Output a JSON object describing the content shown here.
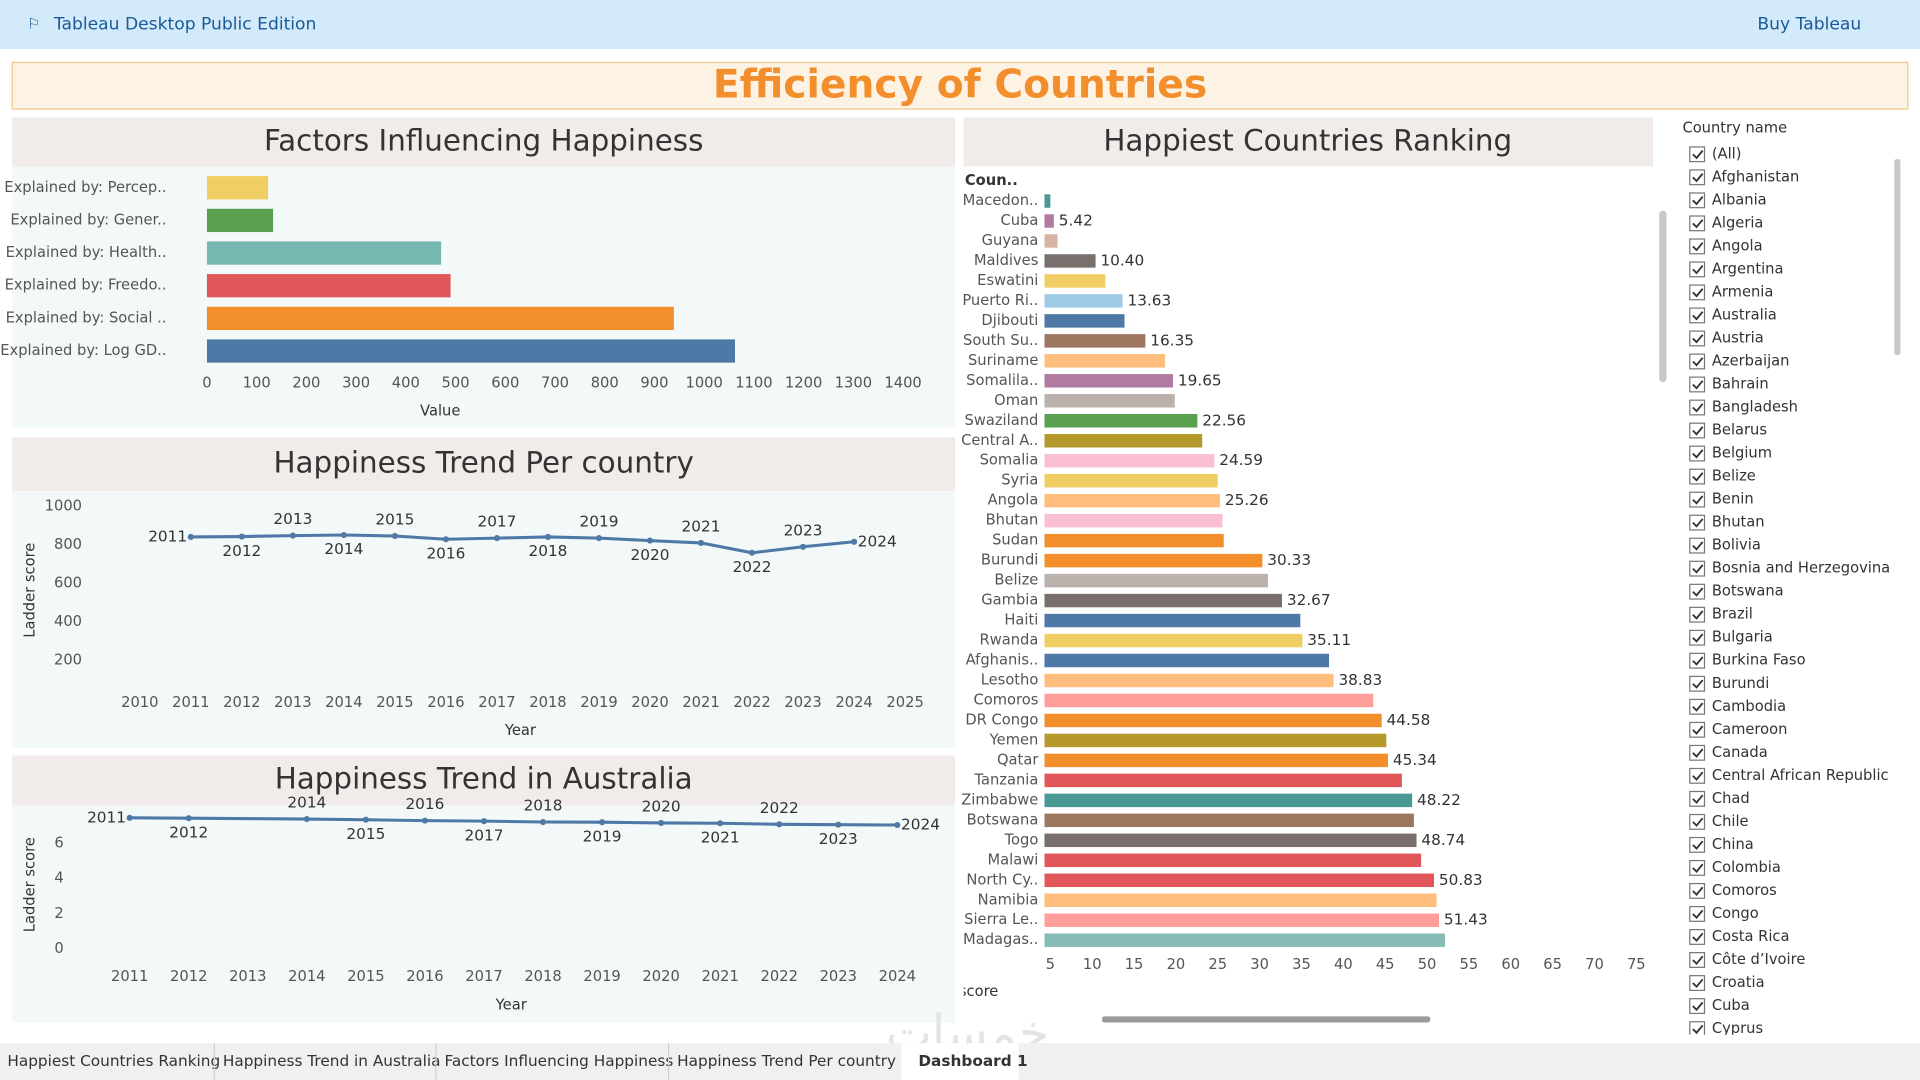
{
  "app": {
    "name": "Tableau Desktop Public Edition",
    "buy": "Buy Tableau"
  },
  "dashboard_title": "Efficiency of Countries",
  "chart_data": [
    {
      "type": "bar",
      "orientation": "horizontal",
      "title": "Factors Influencing Happiness",
      "categories": [
        "Explained by: Percep..",
        "Explained by: Gener..",
        "Explained by: Health..",
        "Explained by: Freedo..",
        "Explained by: Social ..",
        "Explained by: Log GD.."
      ],
      "values": [
        123,
        133,
        471,
        490,
        939,
        1062
      ],
      "colors": [
        "#f1ce63",
        "#59a14f",
        "#76b7b2",
        "#e15759",
        "#f28e2b",
        "#4e79a7"
      ],
      "xlim": [
        0,
        1480
      ],
      "xticks": [
        0,
        100,
        200,
        300,
        400,
        500,
        600,
        700,
        800,
        900,
        1000,
        1100,
        1200,
        1300,
        1400
      ],
      "x_label": "Value"
    },
    {
      "type": "line",
      "title": "Happiness Trend Per country",
      "x": [
        2011,
        2012,
        2013,
        2014,
        2015,
        2016,
        2017,
        2018,
        2019,
        2020,
        2021,
        2022,
        2023,
        2024
      ],
      "values": [
        841,
        843,
        848,
        851,
        846,
        829,
        835,
        841,
        835,
        822,
        810,
        759,
        790,
        816
      ],
      "color": "#4e79a7",
      "xlim": [
        2009.66,
        2025.5
      ],
      "xticks": [
        2010,
        2011,
        2012,
        2013,
        2014,
        2015,
        2016,
        2017,
        2018,
        2019,
        2020,
        2021,
        2022,
        2023,
        2024,
        2025
      ],
      "ylim": [
        70,
        1060
      ],
      "yticks": [
        200,
        400,
        600,
        800,
        1000
      ],
      "x_label": "Year",
      "y_label": "Ladder score"
    },
    {
      "type": "line",
      "title": "Happiness Trend in Australia",
      "x": [
        2011,
        2012,
        2014,
        2015,
        2016,
        2017,
        2018,
        2019,
        2020,
        2021,
        2022,
        2023,
        2024
      ],
      "values": [
        7.47,
        7.45,
        7.4,
        7.36,
        7.31,
        7.28,
        7.23,
        7.22,
        7.18,
        7.16,
        7.1,
        7.08,
        7.06
      ],
      "color": "#4e79a7",
      "xlim": [
        2010.67,
        2024.46
      ],
      "xticks": [
        2011,
        2012,
        2013,
        2014,
        2015,
        2016,
        2017,
        2018,
        2019,
        2020,
        2021,
        2022,
        2023,
        2024
      ],
      "ylim": [
        -0.7,
        8.02
      ],
      "yticks": [
        0,
        2,
        4,
        6
      ],
      "x_label": "Year",
      "y_label": "Ladder score"
    },
    {
      "type": "bar",
      "orientation": "horizontal",
      "title": "Happiest Countries Ranking",
      "column_header": "Coun..",
      "categories": [
        "Macedon..",
        "Cuba",
        "Guyana",
        "Maldives",
        "Eswatini",
        "Puerto Ri..",
        "Djibouti",
        "South Su..",
        "Suriname",
        "Somalila..",
        "Oman",
        "Swaziland",
        "Central A..",
        "Somalia",
        "Syria",
        "Angola",
        "Bhutan",
        "Sudan",
        "Burundi",
        "Belize",
        "Gambia",
        "Haiti",
        "Rwanda",
        "Afghanis..",
        "Lesotho",
        "Comoros",
        "DR Congo",
        "Yemen",
        "Qatar",
        "Tanzania",
        "Zimbabwe",
        "Botswana",
        "Togo",
        "Malawi",
        "North Cy..",
        "Namibia",
        "Sierra Le..",
        "Madagas.."
      ],
      "values": [
        5.0,
        5.42,
        5.86,
        10.4,
        11.57,
        13.63,
        13.86,
        16.35,
        18.71,
        19.65,
        19.86,
        22.56,
        23.14,
        24.59,
        25.0,
        25.26,
        25.57,
        25.71,
        30.33,
        31.0,
        32.67,
        34.86,
        35.11,
        38.29,
        38.83,
        43.57,
        44.58,
        45.14,
        45.34,
        47.0,
        48.22,
        48.43,
        48.74,
        49.29,
        50.83,
        51.14,
        51.43,
        52.14
      ],
      "value_labels": [
        null,
        "5.42",
        null,
        "10.40",
        null,
        "13.63",
        null,
        "16.35",
        null,
        "19.65",
        null,
        "22.56",
        null,
        "24.59",
        null,
        "25.26",
        null,
        null,
        "30.33",
        null,
        "32.67",
        null,
        "35.11",
        null,
        "38.83",
        null,
        "44.58",
        null,
        "45.34",
        null,
        "48.22",
        null,
        "48.74",
        null,
        "50.83",
        null,
        "51.43",
        null
      ],
      "colors": [
        "#499894",
        "#b07aa1",
        "#d7b5a6",
        "#79706e",
        "#f1ce63",
        "#a0cbe8",
        "#4e79a7",
        "#9d7660",
        "#ffbe7d",
        "#b07aa1",
        "#bab0ac",
        "#59a14f",
        "#b6992d",
        "#fabfd2",
        "#f1ce63",
        "#ffbe7d",
        "#fabfd2",
        "#f28e2b",
        "#f28e2b",
        "#bab0ac",
        "#79706e",
        "#4e79a7",
        "#f1ce63",
        "#4e79a7",
        "#ffbe7d",
        "#ff9d9a",
        "#f28e2b",
        "#b6992d",
        "#f28e2b",
        "#e15759",
        "#499894",
        "#9d7660",
        "#79706e",
        "#e15759",
        "#e15759",
        "#ffbe7d",
        "#ff9d9a",
        "#86bcb6"
      ],
      "xlim": [
        4.3,
        77
      ],
      "xticks": [
        5,
        10,
        15,
        20,
        25,
        30,
        35,
        40,
        45,
        50,
        55,
        60,
        65,
        70,
        75
      ],
      "x_label": "Ladder score"
    }
  ],
  "filter": {
    "title": "Country name",
    "items": [
      "(All)",
      "Afghanistan",
      "Albania",
      "Algeria",
      "Angola",
      "Argentina",
      "Armenia",
      "Australia",
      "Austria",
      "Azerbaijan",
      "Bahrain",
      "Bangladesh",
      "Belarus",
      "Belgium",
      "Belize",
      "Benin",
      "Bhutan",
      "Bolivia",
      "Bosnia and Herzegovina",
      "Botswana",
      "Brazil",
      "Bulgaria",
      "Burkina Faso",
      "Burundi",
      "Cambodia",
      "Cameroon",
      "Canada",
      "Central African Republic",
      "Chad",
      "Chile",
      "China",
      "Colombia",
      "Comoros",
      "Congo",
      "Costa Rica",
      "Côte d’Ivoire",
      "Croatia",
      "Cuba",
      "Cyprus"
    ]
  },
  "tabs": [
    "Happiest Countries Ranking",
    "Happiness Trend in Australia",
    "Factors Influencing Happiness",
    "Happiness Trend Per country",
    "Dashboard 1"
  ],
  "watermark": "خمسات"
}
